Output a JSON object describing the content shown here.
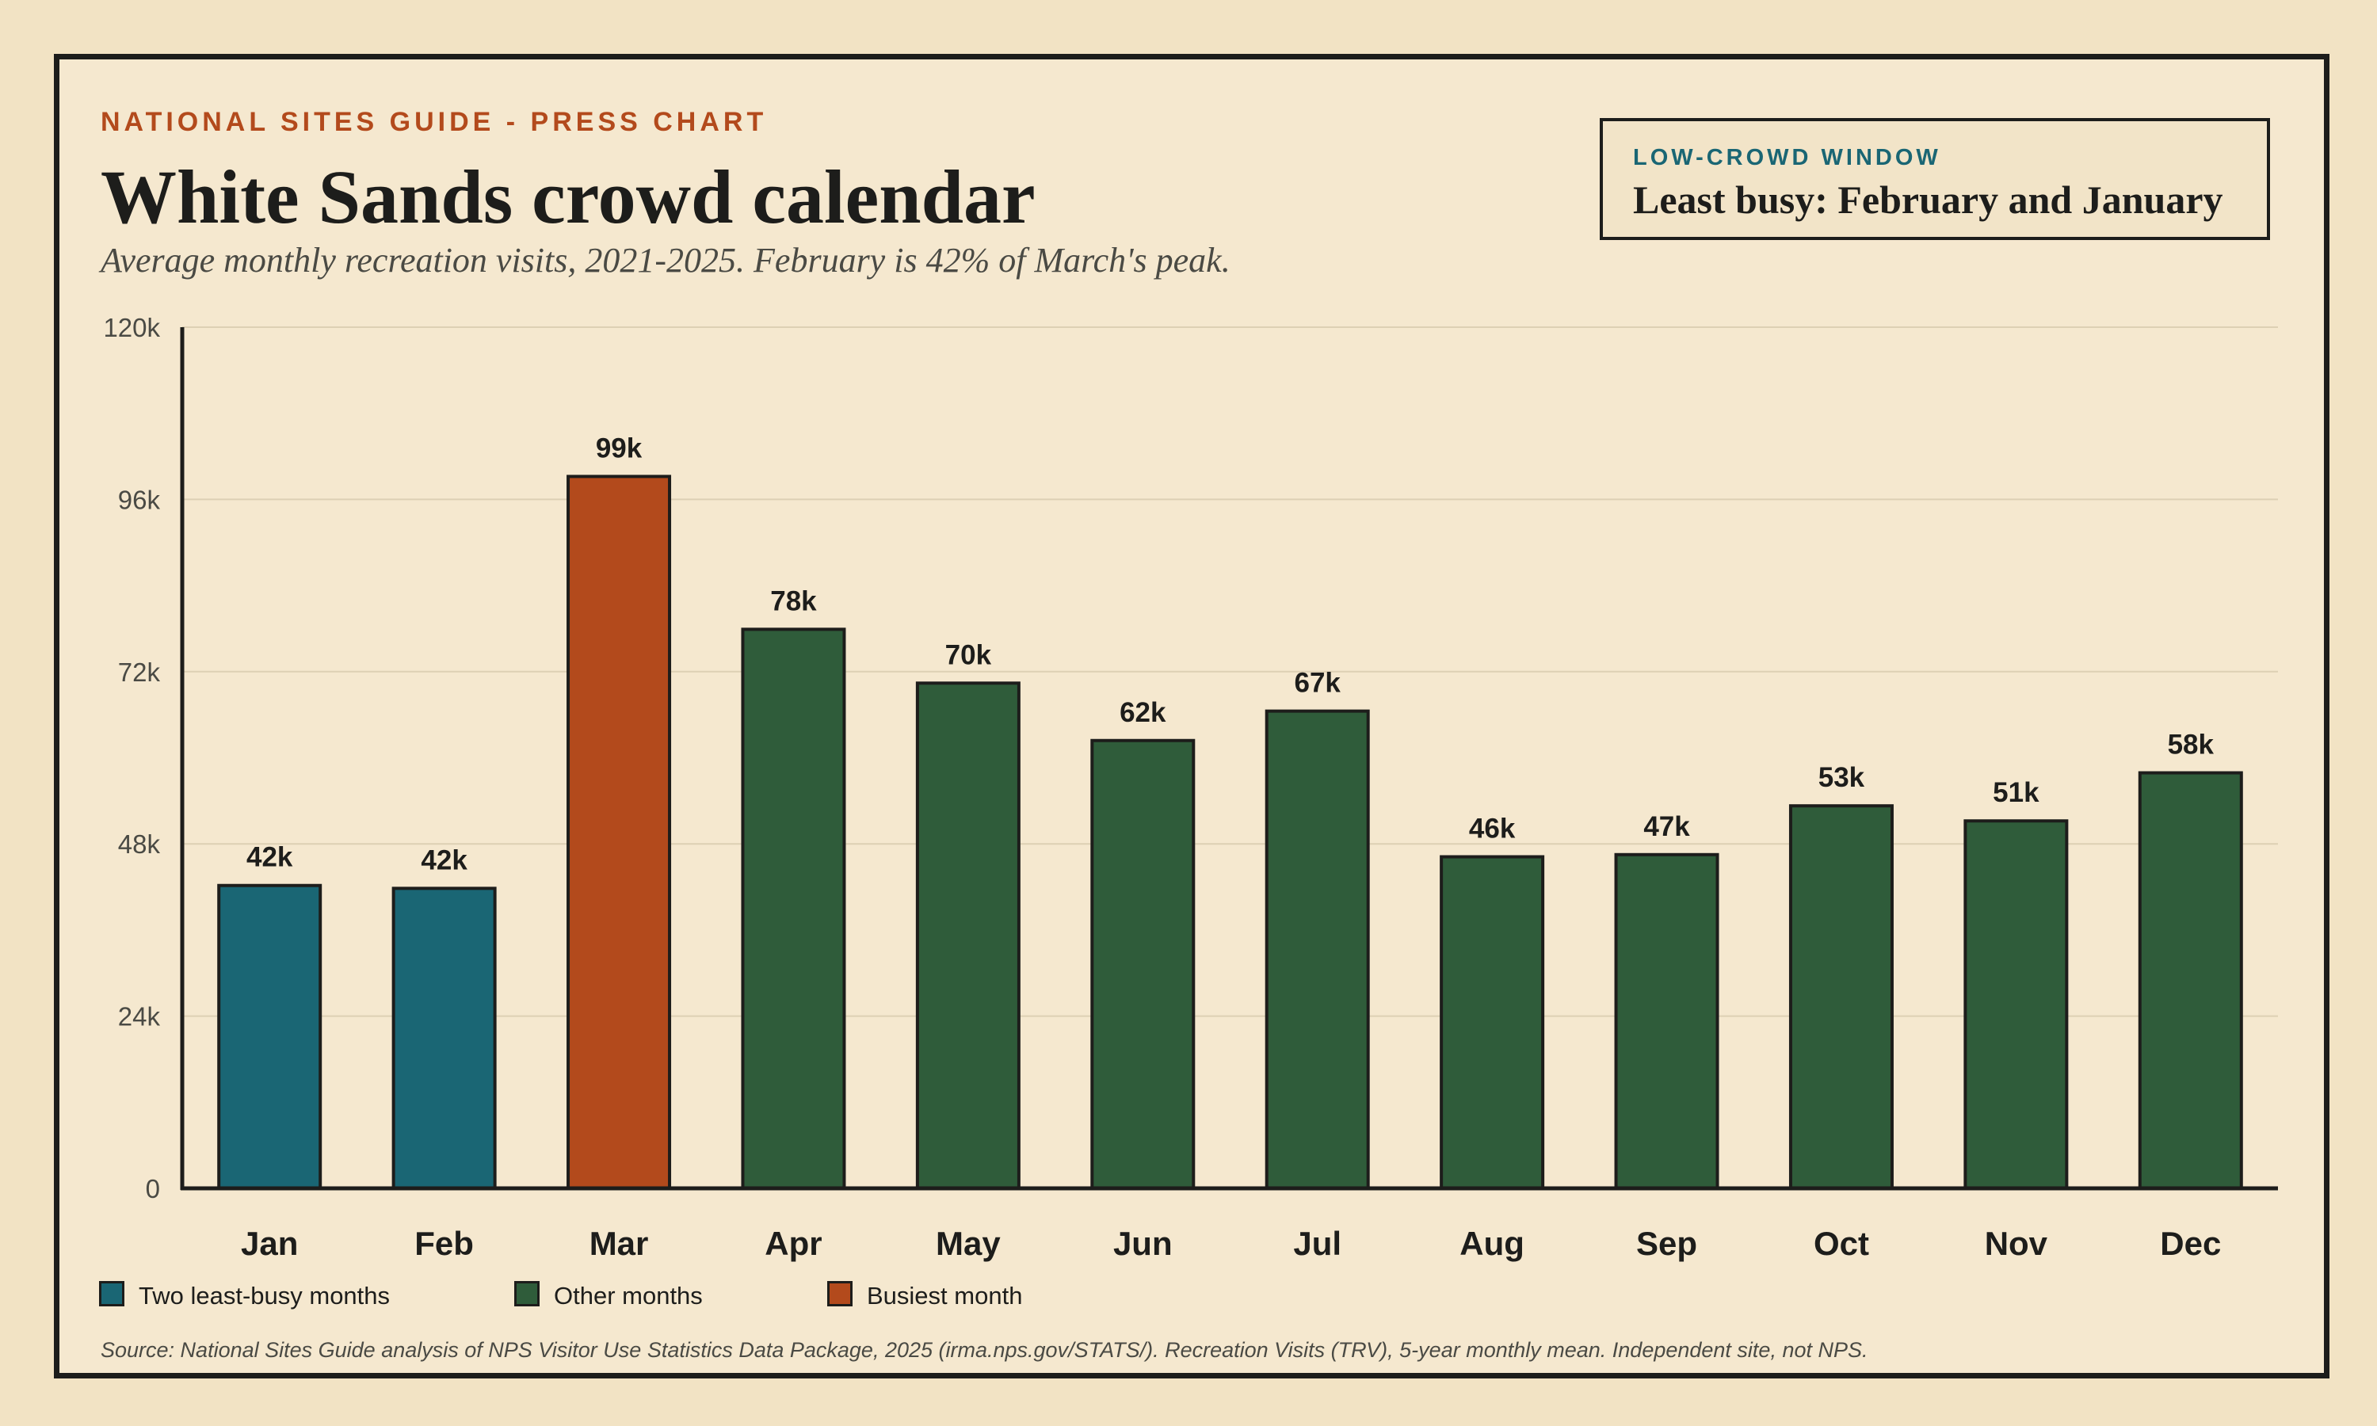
{
  "header": {
    "kicker": "NATIONAL SITES GUIDE - PRESS CHART",
    "title": "White Sands crowd calendar",
    "subtitle": "Average monthly recreation visits, 2021-2025. February is 42% of March's peak."
  },
  "callout": {
    "kicker": "LOW-CROWD WINDOW",
    "text": "Least busy: February and January"
  },
  "legend": [
    {
      "label": "Two least-busy months",
      "color": "#1a6674"
    },
    {
      "label": "Other months",
      "color": "#2f5c3a"
    },
    {
      "label": "Busiest month",
      "color": "#b34a1c"
    }
  ],
  "source": "Source: National Sites Guide analysis of NPS Visitor Use Statistics Data Package, 2025 (irma.nps.gov/STATS/). Recreation Visits (TRV), 5-year monthly mean. Independent site, not NPS.",
  "colors": {
    "least_busy": "#1a6674",
    "other": "#2f5c3a",
    "busiest": "#b34a1c",
    "ink": "#1d1d1b",
    "grid": "#ddd0b4"
  },
  "chart_data": {
    "type": "bar",
    "categories": [
      "Jan",
      "Feb",
      "Mar",
      "Apr",
      "May",
      "Jun",
      "Jul",
      "Aug",
      "Sep",
      "Oct",
      "Nov",
      "Dec"
    ],
    "values": [
      42200,
      41800,
      99200,
      77900,
      70400,
      62400,
      66500,
      46200,
      46500,
      53300,
      51200,
      57900
    ],
    "value_labels": [
      "42k",
      "42k",
      "99k",
      "78k",
      "70k",
      "62k",
      "67k",
      "46k",
      "47k",
      "53k",
      "51k",
      "58k"
    ],
    "groups": [
      "least_busy",
      "least_busy",
      "busiest",
      "other",
      "other",
      "other",
      "other",
      "other",
      "other",
      "other",
      "other",
      "other"
    ],
    "ylim": [
      0,
      120000
    ],
    "yticks": [
      0,
      24000,
      48000,
      72000,
      96000,
      120000
    ],
    "ytick_labels": [
      "0",
      "24k",
      "48k",
      "72k",
      "96k",
      "120k"
    ],
    "xlabel": "",
    "ylabel": "",
    "grid": true,
    "legend_position": "bottom-left"
  }
}
